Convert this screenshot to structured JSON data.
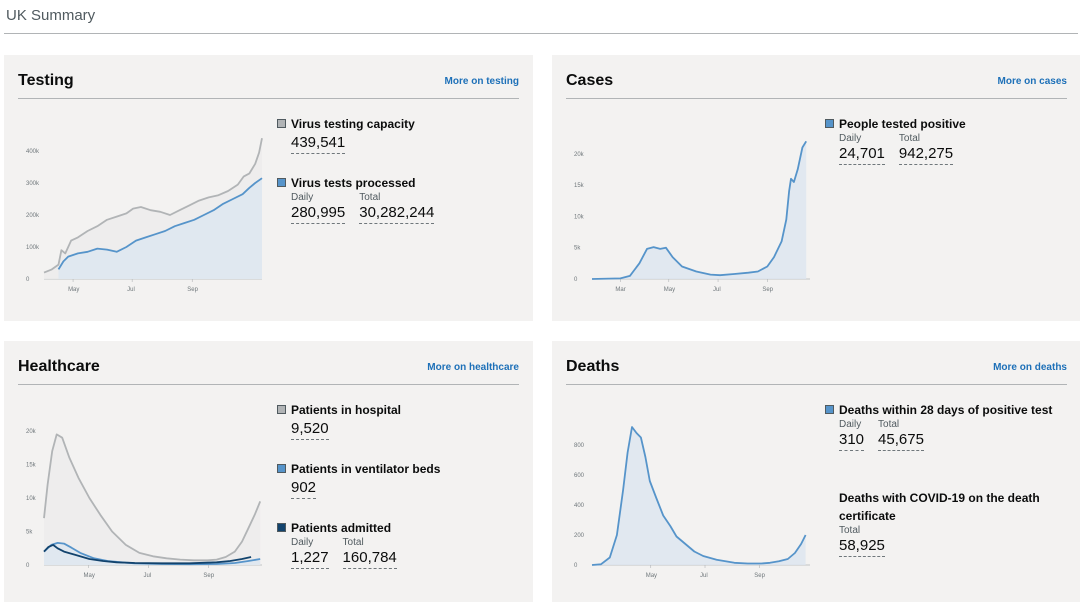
{
  "page": {
    "title": "UK Summary"
  },
  "colors": {
    "capacity": "#b1b4b6",
    "tests": "#5694ca",
    "ventilator": "#5694ca",
    "admitted": "#12436d",
    "link": "#1d70b8",
    "card_bg": "#f3f2f1"
  },
  "cards": {
    "testing": {
      "title": "Testing",
      "link": "More on testing",
      "metrics": {
        "capacity": {
          "label": "Virus testing capacity",
          "value": "439,541"
        },
        "processed": {
          "label": "Virus tests processed",
          "daily_label": "Daily",
          "daily": "280,995",
          "total_label": "Total",
          "total": "30,282,244"
        }
      }
    },
    "cases": {
      "title": "Cases",
      "link": "More on cases",
      "metrics": {
        "positive": {
          "label": "People tested positive",
          "daily_label": "Daily",
          "daily": "24,701",
          "total_label": "Total",
          "total": "942,275"
        }
      }
    },
    "healthcare": {
      "title": "Healthcare",
      "link": "More on healthcare",
      "metrics": {
        "hospital": {
          "label": "Patients in hospital",
          "value": "9,520"
        },
        "ventilator": {
          "label": "Patients in ventilator beds",
          "value": "902"
        },
        "admitted": {
          "label": "Patients admitted",
          "daily_label": "Daily",
          "daily": "1,227",
          "total_label": "Total",
          "total": "160,784"
        }
      }
    },
    "deaths": {
      "title": "Deaths",
      "link": "More on deaths",
      "metrics": {
        "within28": {
          "label": "Deaths within 28 days of positive test",
          "daily_label": "Daily",
          "daily": "310",
          "total_label": "Total",
          "total": "45,675"
        },
        "certificate": {
          "label": "Deaths with COVID-19 on the death certificate",
          "total_label": "Total",
          "total": "58,925"
        }
      }
    }
  },
  "chart_data": [
    {
      "id": "testing",
      "type": "area",
      "x_ticks": [
        {
          "x": 30,
          "label": "May"
        },
        {
          "x": 91,
          "label": "Jul"
        },
        {
          "x": 153,
          "label": "Sep"
        }
      ],
      "y_ticks": [
        {
          "v": 0,
          "label": "0"
        },
        {
          "v": 100000,
          "label": "100k"
        },
        {
          "v": 200000,
          "label": "200k"
        },
        {
          "v": 300000,
          "label": "300k"
        },
        {
          "v": 400000,
          "label": "400k"
        }
      ],
      "xlim": [
        0,
        225
      ],
      "ylim": [
        0,
        450000
      ],
      "series": [
        {
          "key": "capacity",
          "color": "#b1b4b6",
          "fill": "#ececec",
          "points": [
            [
              0,
              20000
            ],
            [
              8,
              30000
            ],
            [
              15,
              45000
            ],
            [
              18,
              90000
            ],
            [
              22,
              80000
            ],
            [
              28,
              120000
            ],
            [
              35,
              130000
            ],
            [
              45,
              150000
            ],
            [
              55,
              165000
            ],
            [
              65,
              185000
            ],
            [
              75,
              195000
            ],
            [
              85,
              205000
            ],
            [
              92,
              220000
            ],
            [
              100,
              225000
            ],
            [
              110,
              215000
            ],
            [
              120,
              210000
            ],
            [
              130,
              200000
            ],
            [
              140,
              215000
            ],
            [
              150,
              230000
            ],
            [
              160,
              245000
            ],
            [
              170,
              255000
            ],
            [
              180,
              262000
            ],
            [
              190,
              275000
            ],
            [
              200,
              295000
            ],
            [
              206,
              320000
            ],
            [
              212,
              330000
            ],
            [
              218,
              360000
            ],
            [
              222,
              395000
            ],
            [
              225,
              440000
            ]
          ]
        },
        {
          "key": "processed",
          "color": "#5694ca",
          "fill": "#dde6f0",
          "points": [
            [
              15,
              30000
            ],
            [
              20,
              55000
            ],
            [
              25,
              70000
            ],
            [
              35,
              80000
            ],
            [
              45,
              85000
            ],
            [
              55,
              95000
            ],
            [
              65,
              92000
            ],
            [
              75,
              85000
            ],
            [
              85,
              100000
            ],
            [
              95,
              120000
            ],
            [
              105,
              130000
            ],
            [
              115,
              140000
            ],
            [
              125,
              150000
            ],
            [
              135,
              165000
            ],
            [
              145,
              175000
            ],
            [
              155,
              185000
            ],
            [
              165,
              200000
            ],
            [
              175,
              215000
            ],
            [
              185,
              235000
            ],
            [
              195,
              250000
            ],
            [
              205,
              265000
            ],
            [
              212,
              285000
            ],
            [
              218,
              300000
            ],
            [
              225,
              315000
            ]
          ]
        }
      ]
    },
    {
      "id": "cases",
      "type": "area",
      "x_ticks": [
        {
          "x": 30,
          "label": "Mar"
        },
        {
          "x": 81,
          "label": "May"
        },
        {
          "x": 133,
          "label": "Jul"
        },
        {
          "x": 185,
          "label": "Sep"
        }
      ],
      "y_ticks": [
        {
          "v": 0,
          "label": "0"
        },
        {
          "v": 5000,
          "label": "5k"
        },
        {
          "v": 10000,
          "label": "10k"
        },
        {
          "v": 15000,
          "label": "15k"
        },
        {
          "v": 20000,
          "label": "20k"
        }
      ],
      "xlim": [
        0,
        230
      ],
      "ylim": [
        0,
        23000
      ],
      "series": [
        {
          "key": "positive",
          "color": "#5694ca",
          "fill": "#dde6f0",
          "points": [
            [
              0,
              0
            ],
            [
              30,
              100
            ],
            [
              40,
              500
            ],
            [
              50,
              2500
            ],
            [
              58,
              4800
            ],
            [
              65,
              5100
            ],
            [
              72,
              4800
            ],
            [
              78,
              5000
            ],
            [
              85,
              3500
            ],
            [
              95,
              2000
            ],
            [
              110,
              1200
            ],
            [
              125,
              700
            ],
            [
              135,
              600
            ],
            [
              150,
              800
            ],
            [
              165,
              1000
            ],
            [
              175,
              1200
            ],
            [
              185,
              2000
            ],
            [
              192,
              3500
            ],
            [
              200,
              6000
            ],
            [
              205,
              9500
            ],
            [
              208,
              14000
            ],
            [
              210,
              16000
            ],
            [
              213,
              15500
            ],
            [
              217,
              17500
            ],
            [
              222,
              21000
            ],
            [
              226,
              22000
            ]
          ]
        }
      ]
    },
    {
      "id": "healthcare",
      "type": "area",
      "x_ticks": [
        {
          "x": 49,
          "label": "May"
        },
        {
          "x": 115,
          "label": "Jul"
        },
        {
          "x": 181,
          "label": "Sep"
        }
      ],
      "y_ticks": [
        {
          "v": 0,
          "label": "0"
        },
        {
          "v": 5000,
          "label": "5k"
        },
        {
          "v": 10000,
          "label": "10k"
        },
        {
          "v": 15000,
          "label": "15k"
        },
        {
          "v": 20000,
          "label": "20k"
        }
      ],
      "xlim": [
        0,
        240
      ],
      "ylim": [
        0,
        21500
      ],
      "series": [
        {
          "key": "hospital",
          "color": "#b1b4b6",
          "fill": "#ececec",
          "points": [
            [
              0,
              7000
            ],
            [
              4,
              12000
            ],
            [
              9,
              17000
            ],
            [
              14,
              19500
            ],
            [
              20,
              19000
            ],
            [
              28,
              16000
            ],
            [
              38,
              13000
            ],
            [
              50,
              10000
            ],
            [
              62,
              7500
            ],
            [
              75,
              5000
            ],
            [
              90,
              3000
            ],
            [
              105,
              1800
            ],
            [
              120,
              1300
            ],
            [
              135,
              1000
            ],
            [
              150,
              800
            ],
            [
              165,
              700
            ],
            [
              180,
              700
            ],
            [
              190,
              800
            ],
            [
              200,
              1200
            ],
            [
              210,
              2000
            ],
            [
              218,
              3500
            ],
            [
              225,
              5500
            ],
            [
              232,
              7500
            ],
            [
              238,
              9500
            ]
          ]
        },
        {
          "key": "ventilator",
          "color": "#5694ca",
          "fill": "#dde6f0",
          "points": [
            [
              0,
              2000
            ],
            [
              8,
              3000
            ],
            [
              15,
              3300
            ],
            [
              22,
              3200
            ],
            [
              30,
              2600
            ],
            [
              40,
              1800
            ],
            [
              55,
              1000
            ],
            [
              70,
              600
            ],
            [
              85,
              400
            ],
            [
              100,
              250
            ],
            [
              130,
              150
            ],
            [
              160,
              120
            ],
            [
              190,
              150
            ],
            [
              210,
              300
            ],
            [
              225,
              600
            ],
            [
              238,
              900
            ]
          ]
        },
        {
          "key": "admitted",
          "color": "#12436d",
          "fill": "none",
          "points": [
            [
              0,
              2000
            ],
            [
              5,
              2700
            ],
            [
              10,
              3000
            ],
            [
              15,
              2500
            ],
            [
              22,
              2000
            ],
            [
              35,
              1500
            ],
            [
              50,
              900
            ],
            [
              65,
              600
            ],
            [
              80,
              400
            ],
            [
              100,
              300
            ],
            [
              130,
              250
            ],
            [
              160,
              250
            ],
            [
              190,
              400
            ],
            [
              205,
              600
            ],
            [
              218,
              900
            ],
            [
              228,
              1200
            ]
          ]
        }
      ]
    },
    {
      "id": "deaths",
      "type": "area",
      "x_ticks": [
        {
          "x": 66,
          "label": "May"
        },
        {
          "x": 127,
          "label": "Jul"
        },
        {
          "x": 188,
          "label": "Sep"
        }
      ],
      "y_ticks": [
        {
          "v": 0,
          "label": "0"
        },
        {
          "v": 200,
          "label": "200"
        },
        {
          "v": 400,
          "label": "400"
        },
        {
          "v": 600,
          "label": "600"
        },
        {
          "v": 800,
          "label": "800"
        }
      ],
      "xlim": [
        0,
        245
      ],
      "ylim": [
        0,
        960
      ],
      "series": [
        {
          "key": "deaths",
          "color": "#5694ca",
          "fill": "#dde6f0",
          "points": [
            [
              0,
              0
            ],
            [
              10,
              5
            ],
            [
              20,
              50
            ],
            [
              28,
              200
            ],
            [
              35,
              500
            ],
            [
              40,
              750
            ],
            [
              45,
              920
            ],
            [
              50,
              880
            ],
            [
              55,
              850
            ],
            [
              60,
              720
            ],
            [
              65,
              560
            ],
            [
              72,
              450
            ],
            [
              80,
              330
            ],
            [
              88,
              260
            ],
            [
              95,
              190
            ],
            [
              105,
              140
            ],
            [
              115,
              90
            ],
            [
              125,
              60
            ],
            [
              140,
              35
            ],
            [
              160,
              15
            ],
            [
              175,
              10
            ],
            [
              190,
              10
            ],
            [
              200,
              15
            ],
            [
              210,
              25
            ],
            [
              220,
              40
            ],
            [
              228,
              80
            ],
            [
              235,
              140
            ],
            [
              240,
              200
            ]
          ]
        }
      ]
    }
  ]
}
